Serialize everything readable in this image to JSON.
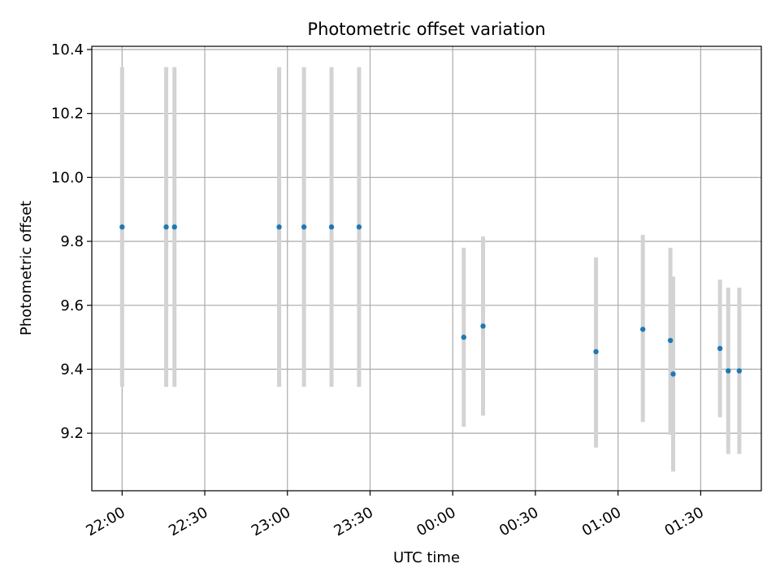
{
  "chart_data": {
    "type": "scatter",
    "title": "Photometric offset variation",
    "xlabel": "UTC time",
    "ylabel": "Photometric offset",
    "grid": true,
    "x_tick_labels": [
      "22:00",
      "22:30",
      "23:00",
      "23:30",
      "00:00",
      "00:30",
      "01:00",
      "01:30"
    ],
    "x_tick_minutes_after_2200": [
      0,
      30,
      60,
      90,
      120,
      150,
      180,
      210
    ],
    "y_ticks": [
      9.2,
      9.4,
      9.6,
      9.8,
      10.0,
      10.2,
      10.4
    ],
    "y_tick_labels": [
      "9.2",
      "9.4",
      "9.6",
      "9.8",
      "10.0",
      "10.2",
      "10.4"
    ],
    "xlim_minutes_after_2200": [
      -11,
      232
    ],
    "ylim": [
      9.02,
      10.41
    ],
    "colors": {
      "points": "#1f77b4",
      "errorbars": "#d3d3d3",
      "grid": "#b0b0b0"
    },
    "series": [
      {
        "points": [
          {
            "time": "22:00",
            "t": 0,
            "y": 9.845,
            "low": 9.345,
            "high": 10.345
          },
          {
            "time": "22:16",
            "t": 16,
            "y": 9.845,
            "low": 9.345,
            "high": 10.345
          },
          {
            "time": "22:19",
            "t": 19,
            "y": 9.845,
            "low": 9.345,
            "high": 10.345
          },
          {
            "time": "22:57",
            "t": 57,
            "y": 9.845,
            "low": 9.345,
            "high": 10.345
          },
          {
            "time": "23:06",
            "t": 66,
            "y": 9.845,
            "low": 9.345,
            "high": 10.345
          },
          {
            "time": "23:16",
            "t": 76,
            "y": 9.845,
            "low": 9.345,
            "high": 10.345
          },
          {
            "time": "23:26",
            "t": 86,
            "y": 9.845,
            "low": 9.345,
            "high": 10.345
          },
          {
            "time": "00:04",
            "t": 124,
            "y": 9.5,
            "low": 9.22,
            "high": 9.78
          },
          {
            "time": "00:11",
            "t": 131,
            "y": 9.535,
            "low": 9.255,
            "high": 9.815
          },
          {
            "time": "00:52",
            "t": 172,
            "y": 9.455,
            "low": 9.155,
            "high": 9.75
          },
          {
            "time": "01:09",
            "t": 189,
            "y": 9.525,
            "low": 9.235,
            "high": 9.82
          },
          {
            "time": "01:19",
            "t": 199,
            "y": 9.49,
            "low": 9.195,
            "high": 9.78
          },
          {
            "time": "01:20",
            "t": 200,
            "y": 9.385,
            "low": 9.08,
            "high": 9.69
          },
          {
            "time": "01:37",
            "t": 217,
            "y": 9.465,
            "low": 9.25,
            "high": 9.68
          },
          {
            "time": "01:40",
            "t": 220,
            "y": 9.395,
            "low": 9.135,
            "high": 9.655
          },
          {
            "time": "01:44",
            "t": 224,
            "y": 9.395,
            "low": 9.135,
            "high": 9.655
          }
        ]
      }
    ]
  }
}
